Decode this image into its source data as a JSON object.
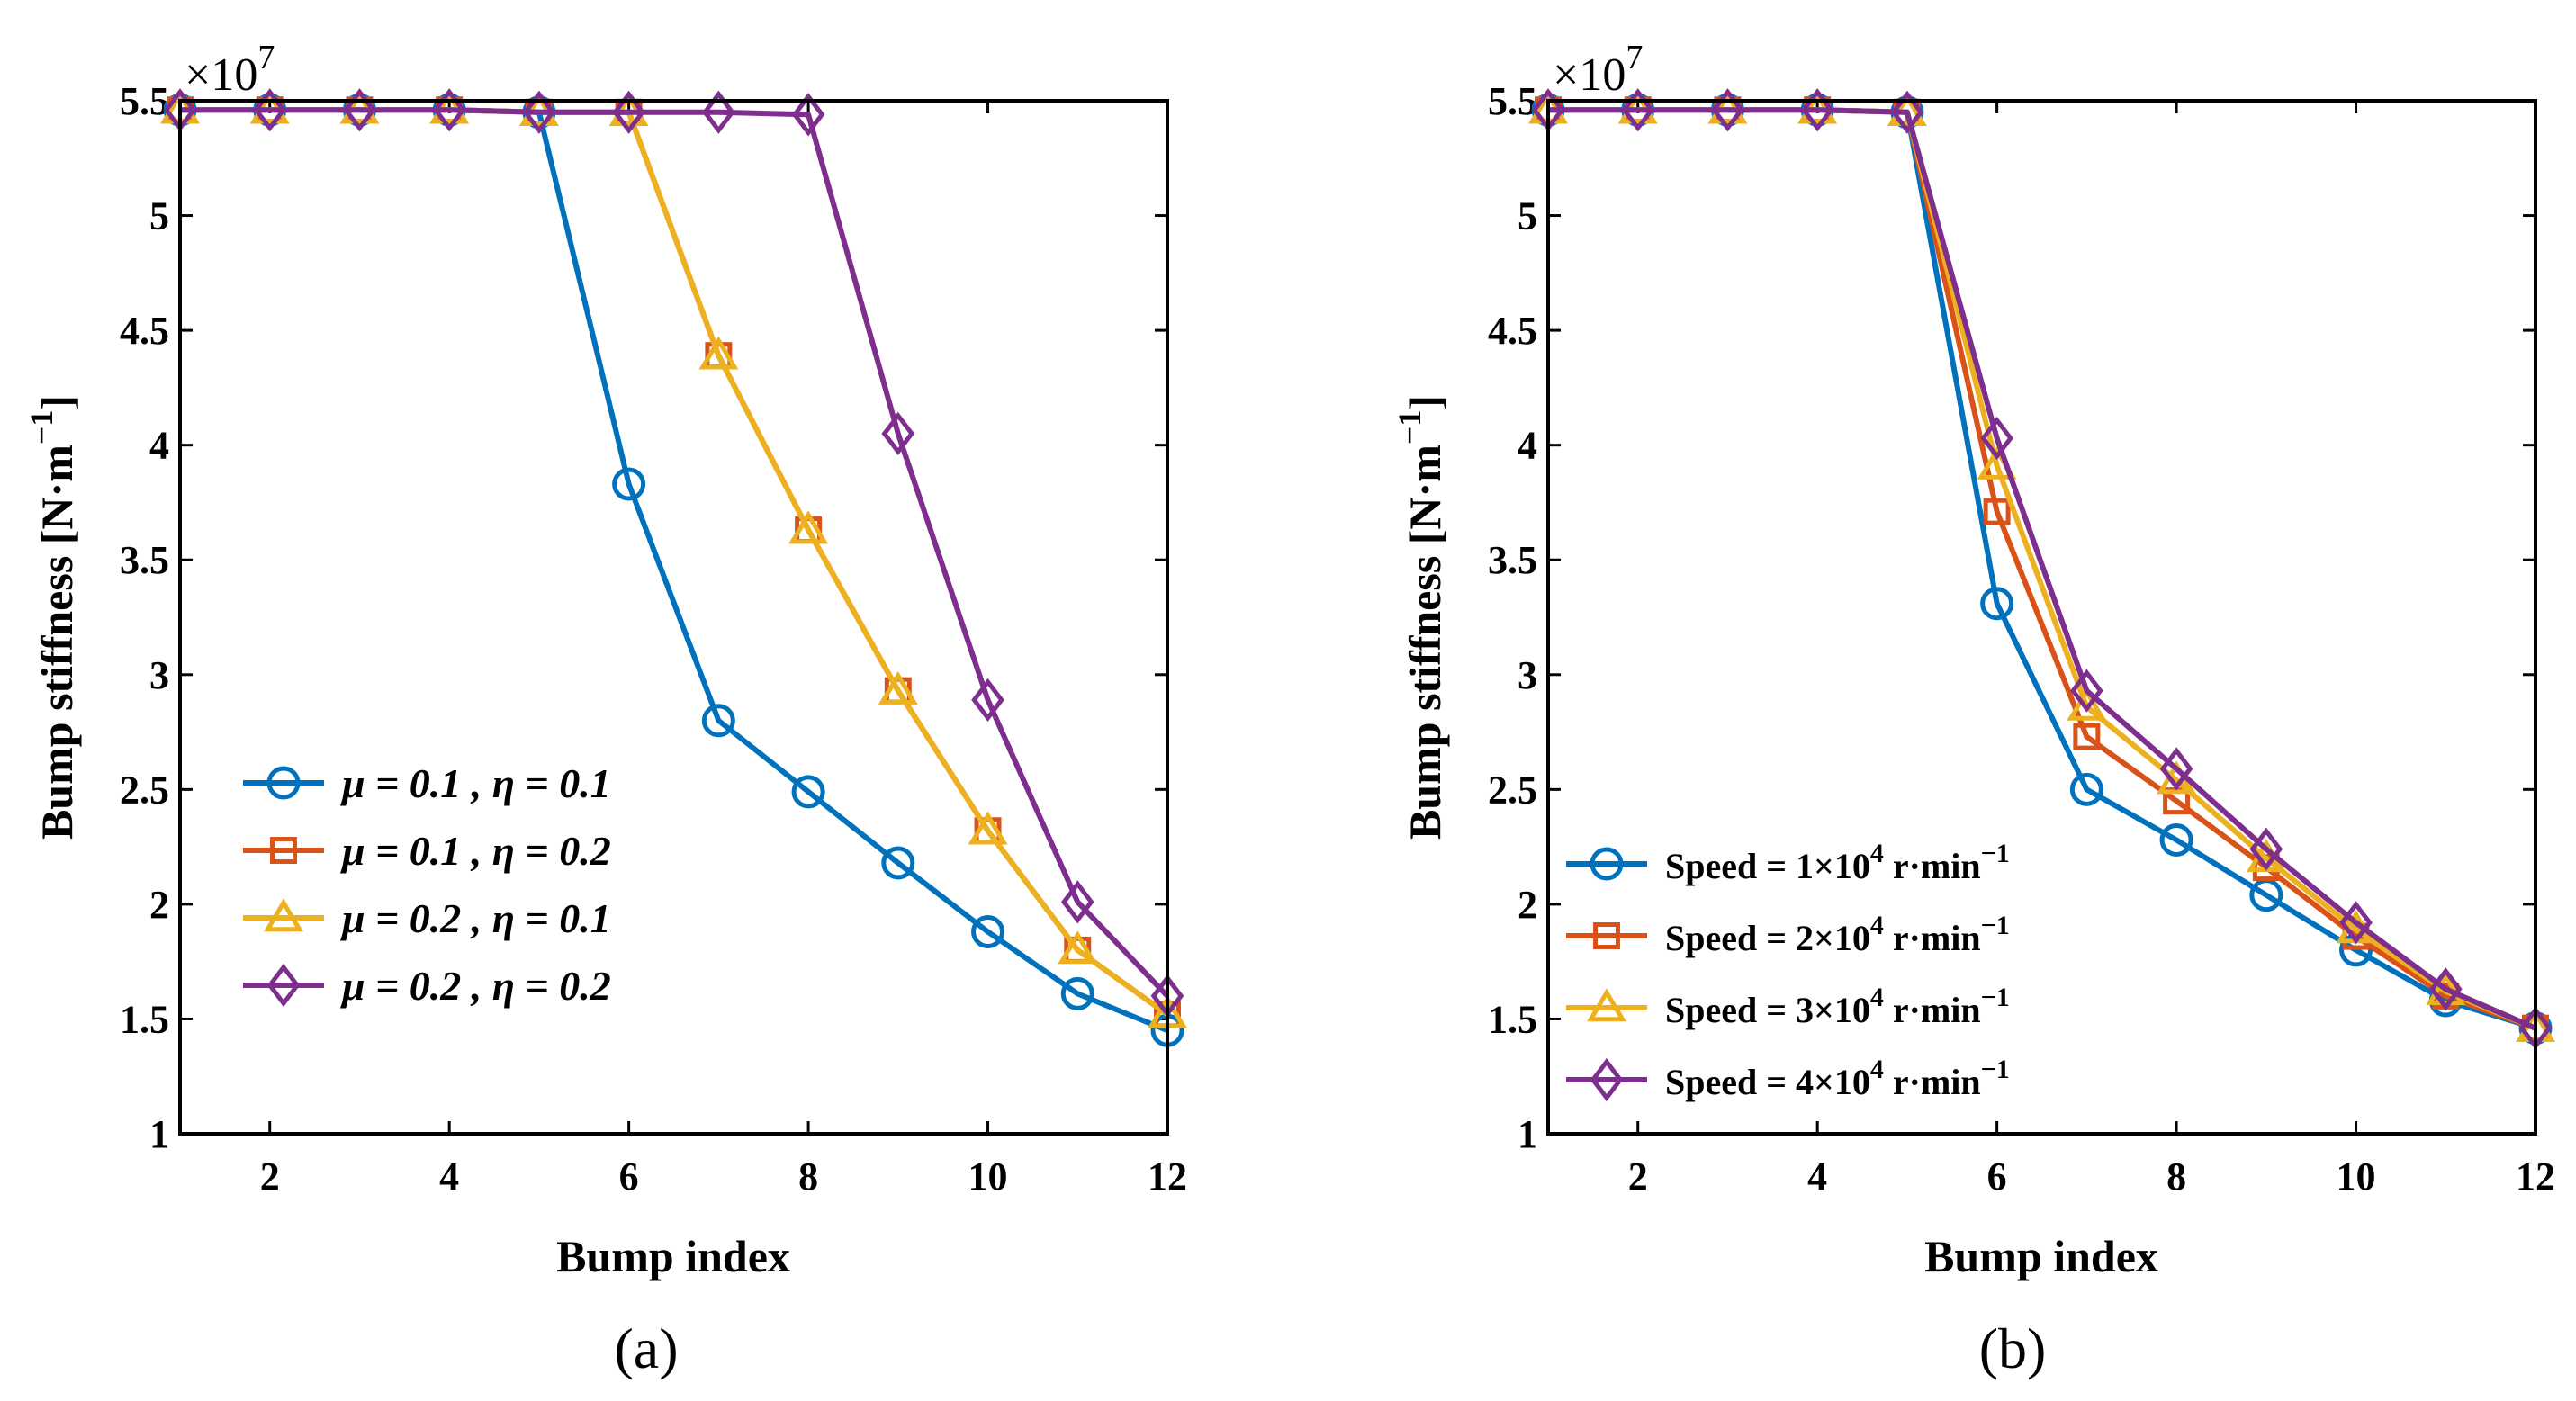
{
  "colors": {
    "blue": "#0072BD",
    "orange": "#D95319",
    "yellow": "#EDB120",
    "purple": "#7E2F8E"
  },
  "chart_data": [
    {
      "type": "line",
      "panel_label": "(a)",
      "xlabel": "Bump index",
      "ylabel": "Bump stiffness [N·m⁻¹]",
      "ylabel_parts": {
        "main": "Bump stiffness [N·m",
        "sup": "−1",
        "close": "]"
      },
      "y_multiplier": "×10",
      "y_multiplier_exp": "7",
      "xlim": [
        1,
        12
      ],
      "ylim": [
        1,
        5.5
      ],
      "xticks": [
        2,
        4,
        6,
        8,
        10,
        12
      ],
      "yticks": [
        1,
        1.5,
        2,
        2.5,
        3,
        3.5,
        4,
        4.5,
        5,
        5.5
      ],
      "x": [
        1,
        2,
        3,
        4,
        5,
        6,
        7,
        8,
        9,
        10,
        11,
        12
      ],
      "legend_position": "bottom-left",
      "series": [
        {
          "name": "μ = 0.1 , η = 0.1",
          "color": "#0072BD",
          "marker": "circle",
          "values": [
            5.46,
            5.46,
            5.46,
            5.46,
            5.45,
            3.83,
            2.8,
            2.49,
            2.18,
            1.88,
            1.61,
            1.45
          ]
        },
        {
          "name": "μ = 0.1 , η = 0.2",
          "color": "#D95319",
          "marker": "square",
          "values": [
            5.46,
            5.46,
            5.46,
            5.46,
            5.45,
            5.45,
            4.39,
            3.63,
            2.93,
            2.32,
            1.8,
            1.52
          ]
        },
        {
          "name": "μ = 0.2 , η = 0.1",
          "color": "#EDB120",
          "marker": "triangle",
          "values": [
            5.46,
            5.46,
            5.46,
            5.46,
            5.45,
            5.45,
            4.39,
            3.63,
            2.93,
            2.32,
            1.8,
            1.52
          ]
        },
        {
          "name": "μ = 0.2 , η = 0.2",
          "color": "#7E2F8E",
          "marker": "diamond",
          "values": [
            5.46,
            5.46,
            5.46,
            5.46,
            5.45,
            5.45,
            5.45,
            5.44,
            4.05,
            2.89,
            2.01,
            1.6
          ]
        }
      ]
    },
    {
      "type": "line",
      "panel_label": "(b)",
      "xlabel": "Bump index",
      "ylabel": "Bump stiffness [N·m⁻¹]",
      "ylabel_parts": {
        "main": "Bump stiffness [N·m",
        "sup": "−1",
        "close": "]"
      },
      "y_multiplier": "×10",
      "y_multiplier_exp": "7",
      "xlim": [
        1,
        12
      ],
      "ylim": [
        1,
        5.5
      ],
      "xticks": [
        2,
        4,
        6,
        8,
        10,
        12
      ],
      "yticks": [
        1,
        1.5,
        2,
        2.5,
        3,
        3.5,
        4,
        4.5,
        5,
        5.5
      ],
      "x": [
        1,
        2,
        3,
        4,
        5,
        6,
        7,
        8,
        9,
        10,
        11,
        12
      ],
      "legend_position": "bottom-left",
      "series": [
        {
          "name": "Speed = 1×10⁴ r·min⁻¹",
          "name_parts": [
            "Speed = 1×10",
            "4",
            " r·min",
            "−1"
          ],
          "color": "#0072BD",
          "marker": "circle",
          "values": [
            5.46,
            5.46,
            5.46,
            5.46,
            5.45,
            3.31,
            2.5,
            2.28,
            2.04,
            1.8,
            1.58,
            1.46
          ]
        },
        {
          "name": "Speed = 2×10⁴ r·min⁻¹",
          "name_parts": [
            "Speed = 2×10",
            "4",
            " r·min",
            "−1"
          ],
          "color": "#D95319",
          "marker": "square",
          "values": [
            5.46,
            5.46,
            5.46,
            5.46,
            5.45,
            3.71,
            2.73,
            2.45,
            2.16,
            1.86,
            1.6,
            1.46
          ]
        },
        {
          "name": "Speed = 3×10⁴ r·min⁻¹",
          "name_parts": [
            "Speed = 3×10",
            "4",
            " r·min",
            "−1"
          ],
          "color": "#EDB120",
          "marker": "triangle",
          "values": [
            5.46,
            5.46,
            5.46,
            5.46,
            5.45,
            3.91,
            2.86,
            2.54,
            2.2,
            1.89,
            1.62,
            1.46
          ]
        },
        {
          "name": "Speed = 4×10⁴ r·min⁻¹",
          "name_parts": [
            "Speed = 4×10",
            "4",
            " r·min",
            "−1"
          ],
          "color": "#7E2F8E",
          "marker": "diamond",
          "values": [
            5.46,
            5.46,
            5.46,
            5.46,
            5.45,
            4.03,
            2.93,
            2.59,
            2.24,
            1.92,
            1.63,
            1.46
          ]
        }
      ]
    }
  ]
}
